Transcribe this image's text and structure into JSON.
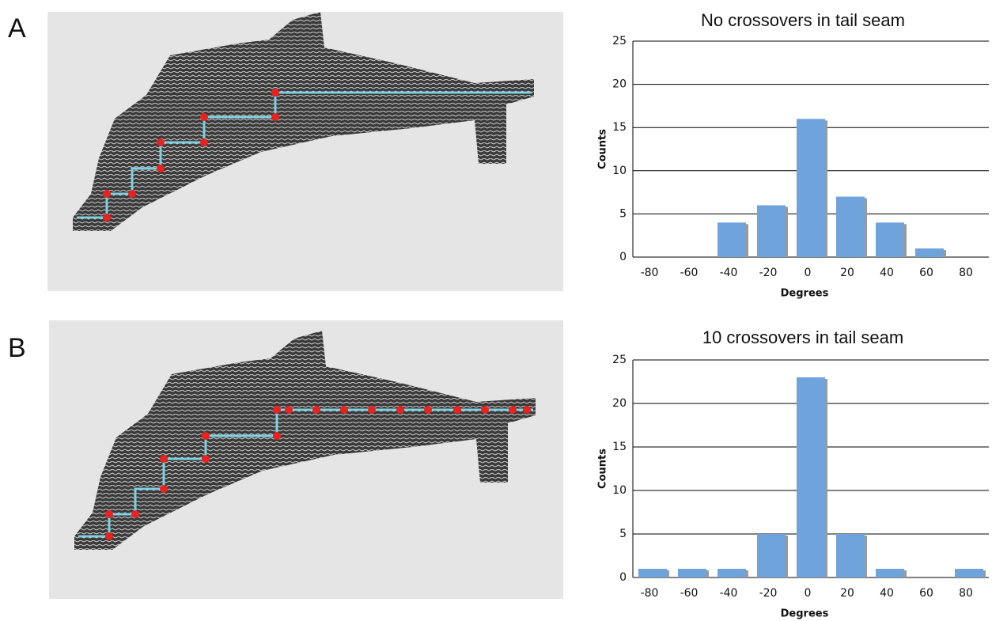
{
  "panel_labels": [
    "A",
    "B"
  ],
  "chart_data": [
    {
      "type": "bar",
      "title": "No crossovers in tail seam",
      "x_label": "Degrees",
      "y_label": "Counts",
      "categories": [
        "-80",
        "-60",
        "-40",
        "-20",
        "0",
        "20",
        "40",
        "60",
        "80"
      ],
      "values": [
        0,
        0,
        4,
        6,
        16,
        7,
        4,
        1,
        0
      ],
      "color": "#6fa3dc",
      "ylim": [
        0,
        25
      ],
      "yticks": [
        0,
        5,
        10,
        15,
        20,
        25
      ],
      "grid": true
    },
    {
      "type": "bar",
      "title": "10 crossovers in tail seam",
      "x_label": "Degrees",
      "y_label": "Counts",
      "categories": [
        "-80",
        "-60",
        "-40",
        "-20",
        "0",
        "20",
        "40",
        "60",
        "80"
      ],
      "values": [
        1,
        1,
        1,
        5,
        23,
        5,
        1,
        0,
        1
      ],
      "color": "#6fa3dc",
      "ylim": [
        0,
        25
      ],
      "yticks": [
        0,
        5,
        10,
        15,
        20,
        25
      ],
      "grid": true
    }
  ]
}
